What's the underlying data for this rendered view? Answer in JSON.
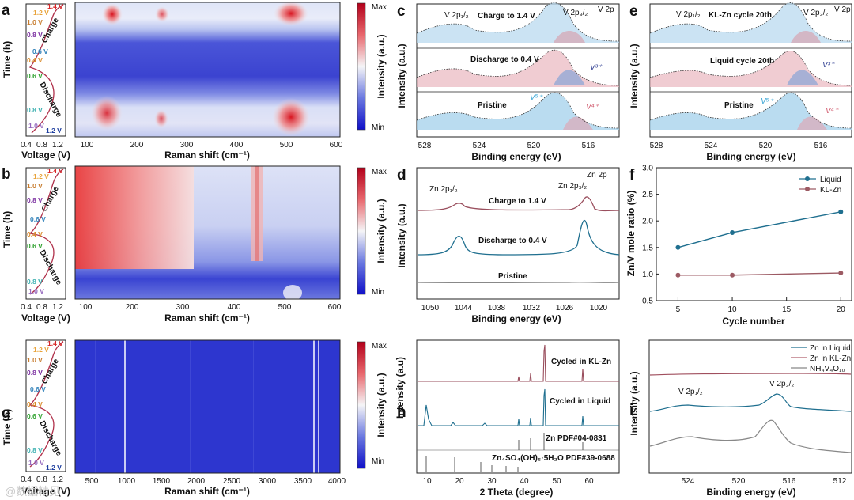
{
  "panels": {
    "a": {
      "label": "a",
      "voltage_axis_label": "Voltage (V)",
      "time_axis_label": "Time (h)",
      "voltage_ticks": [
        "0.4",
        "0.8",
        "1.2"
      ],
      "charge_label": "Charge",
      "discharge_label": "Discharge",
      "v_labels": [
        {
          "text": "1.4 V",
          "color": "#d62728"
        },
        {
          "text": "1.2 V",
          "color": "#e8a33a"
        },
        {
          "text": "1.0 V",
          "color": "#c77c2e"
        },
        {
          "text": "0.8 V",
          "color": "#7b2fa0"
        },
        {
          "text": "0.6 V",
          "color": "#2c7fb8"
        },
        {
          "text": "0.4 V",
          "color": "#d98b2b"
        },
        {
          "text": "0.6 V",
          "color": "#2ca02c"
        },
        {
          "text": "0.8 V",
          "color": "#3cb0b0"
        },
        {
          "text": "1.0 V",
          "color": "#9467bd"
        },
        {
          "text": "1.2 V",
          "color": "#1f3f9f"
        }
      ],
      "xlabel": "Raman shift (cm⁻¹)",
      "xticks": [
        "100",
        "200",
        "300",
        "400",
        "500",
        "600"
      ],
      "colorbar": {
        "max": "Max",
        "min": "Min",
        "label": "Intensity (a.u.)"
      }
    },
    "b": {
      "label": "b",
      "voltage_axis_label": "Voltage (V)",
      "time_axis_label": "Time (h)",
      "voltage_ticks": [
        "0.4",
        "0.8",
        "1.2"
      ],
      "charge_label": "Charge",
      "discharge_label": "Discharge",
      "v_labels": [
        {
          "text": "1.4 V",
          "color": "#d62728"
        },
        {
          "text": "1.2 V",
          "color": "#e8a33a"
        },
        {
          "text": "1.0 V",
          "color": "#c77c2e"
        },
        {
          "text": "0.8 V",
          "color": "#7b2fa0"
        },
        {
          "text": "0.6 V",
          "color": "#2c7fb8"
        },
        {
          "text": "0.4 V",
          "color": "#d98b2b"
        },
        {
          "text": "0.6 V",
          "color": "#2ca02c"
        },
        {
          "text": "0.8 V",
          "color": "#3cb0b0"
        },
        {
          "text": "1.0 V",
          "color": "#9467bd"
        }
      ],
      "xlabel": "Raman shift (cm⁻¹)",
      "xticks": [
        "100",
        "200",
        "300",
        "400",
        "500",
        "600"
      ],
      "colorbar": {
        "max": "Max",
        "min": "Min",
        "label": "Intensity (a.u.)"
      }
    },
    "g": {
      "label": "g",
      "voltage_axis_label": "Voltage (V)",
      "time_axis_label": "Time (h)",
      "voltage_ticks": [
        "0.4",
        "0.8",
        "1.2"
      ],
      "charge_label": "Charge",
      "discharge_label": "Discharge",
      "v_labels": [
        {
          "text": "1.4 V",
          "color": "#d62728"
        },
        {
          "text": "1.2 V",
          "color": "#e8a33a"
        },
        {
          "text": "1.0 V",
          "color": "#c77c2e"
        },
        {
          "text": "0.8 V",
          "color": "#7b2fa0"
        },
        {
          "text": "0.6 V",
          "color": "#2c7fb8"
        },
        {
          "text": "0.4 V",
          "color": "#d98b2b"
        },
        {
          "text": "0.6 V",
          "color": "#2ca02c"
        },
        {
          "text": "0.8 V",
          "color": "#3cb0b0"
        },
        {
          "text": "1.0 V",
          "color": "#9467bd"
        },
        {
          "text": "1.2 V",
          "color": "#1f3f9f"
        }
      ],
      "xlabel": "Raman shift (cm⁻¹)",
      "xticks": [
        "500",
        "1000",
        "1500",
        "2000",
        "2500",
        "3000",
        "3500",
        "4000"
      ],
      "colorbar": {
        "max": "Max",
        "min": "Min",
        "label": "Intensity (a.u.)"
      }
    },
    "c": {
      "label": "c",
      "corner": "V 2p",
      "ylabel": "Intensity (a.u.)",
      "xlabel": "Binding energy (eV)",
      "xticks": [
        "528",
        "524",
        "520",
        "516"
      ],
      "peak_half": "V 2p₁/₂",
      "peak_three_half": "V 2p₃/₂",
      "rows": [
        "Charge to 1.4 V",
        "Discharge to 0.4 V",
        "Pristine"
      ],
      "v3": "V³⁺",
      "v5": "V⁵⁺",
      "v4": "V⁴⁺"
    },
    "e": {
      "label": "e",
      "corner": "V 2p",
      "ylabel": "Intensity (a.u.)",
      "xlabel": "Binding energy (eV)",
      "xticks": [
        "528",
        "524",
        "520",
        "516"
      ],
      "peak_half": "V 2p₁/₂",
      "peak_three_half": "V 2p₃/₂",
      "rows": [
        "KL-Zn cycle 20th",
        "Liquid cycle 20th",
        "Pristine"
      ],
      "v3": "V³⁺",
      "v5": "V⁵⁺",
      "v4": "V⁴⁺"
    },
    "d": {
      "label": "d",
      "corner": "Zn 2p",
      "ylabel": "Intensity (a.u.)",
      "xlabel": "Binding energy (eV)",
      "xticks": [
        "1050",
        "1044",
        "1038",
        "1032",
        "1026",
        "1020"
      ],
      "peak_half": "Zn 2p₁/₂",
      "peak_three_half": "Zn 2p₃/₂",
      "curves": [
        "Charge to 1.4 V",
        "Discharge to 0.4 V",
        "Pristine"
      ]
    },
    "h": {
      "label": "h",
      "ylabel": "Intensity (a.u)",
      "xlabel": "2 Theta (degree)",
      "xticks": [
        "10",
        "20",
        "30",
        "40",
        "50",
        "60"
      ],
      "curves": [
        "Cycled in KL-Zn",
        "Cycled in Liquid",
        "Zn PDF#04-0831",
        "Zn₄SO₄(OH)₆·5H₂O PDF#39-0688"
      ]
    },
    "i": {
      "label": "i",
      "ylabel": "Intensity (a.u.)",
      "xlabel": "Binding energy (eV)",
      "xticks": [
        "524",
        "520",
        "516",
        "512"
      ],
      "legend": [
        "Zn in Liquid",
        "Zn in KL-Zn",
        "NH₄V₄O₁₀"
      ],
      "peak_half": "V 2p₁/₂",
      "peak_three_half": "V 2p₃/₂"
    }
  },
  "chart_data": [
    {
      "panel": "f",
      "label": "f",
      "type": "line",
      "xlabel": "Cycle number",
      "ylabel": "Zn/V mole ratio (%)",
      "xlim": [
        3,
        21
      ],
      "ylim": [
        0.5,
        3.0
      ],
      "xticks": [
        5,
        10,
        15,
        20
      ],
      "yticks": [
        0.5,
        1.0,
        1.5,
        2.0,
        2.5,
        3.0
      ],
      "legend_position": "top-right",
      "series": [
        {
          "name": "Liquid",
          "color": "#1f6f8f",
          "x": [
            5,
            10,
            20
          ],
          "values": [
            1.5,
            1.78,
            2.17
          ]
        },
        {
          "name": "KL-Zn",
          "color": "#9c5a63",
          "x": [
            5,
            10,
            20
          ],
          "values": [
            0.98,
            0.98,
            1.02
          ]
        }
      ]
    }
  ],
  "watermark": "@数据精见"
}
